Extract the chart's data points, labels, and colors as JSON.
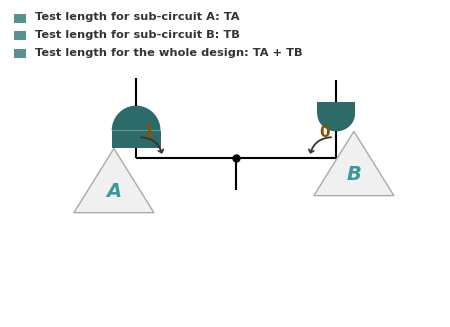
{
  "bg_color": "#ffffff",
  "teal_color": "#2d6b6b",
  "triangle_fill": "#f0f0f0",
  "triangle_edge": "#aaaaaa",
  "text_color_dark": "#333333",
  "text_color_teal": "#3a9a9a",
  "bullet_color": "#5a9090",
  "legend_items": [
    "Test length for sub-circuit A: TA",
    "Test length for sub-circuit B: TB",
    "Test length for the whole design: TA + TB"
  ],
  "label_A": "A",
  "label_B": "B",
  "label_1": "1",
  "label_0": "0",
  "arrow_color": "#333333",
  "number_color": "#8B5000"
}
